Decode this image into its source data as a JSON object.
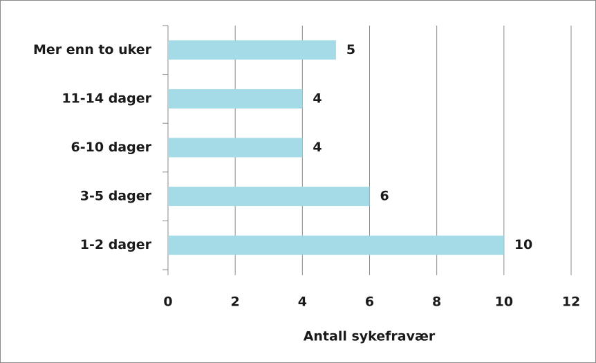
{
  "chart_data": {
    "type": "bar",
    "orientation": "horizontal",
    "categories": [
      "Mer enn to uker",
      "11-14 dager",
      "6-10 dager",
      "3-5 dager",
      "1-2 dager"
    ],
    "values": [
      5,
      4,
      4,
      6,
      10
    ],
    "color": "#a5dbe7",
    "xlabel": "Antall sykefravær",
    "xlim": [
      0,
      12
    ],
    "xticks": [
      0,
      2,
      4,
      6,
      8,
      10,
      12
    ],
    "grid": true
  }
}
